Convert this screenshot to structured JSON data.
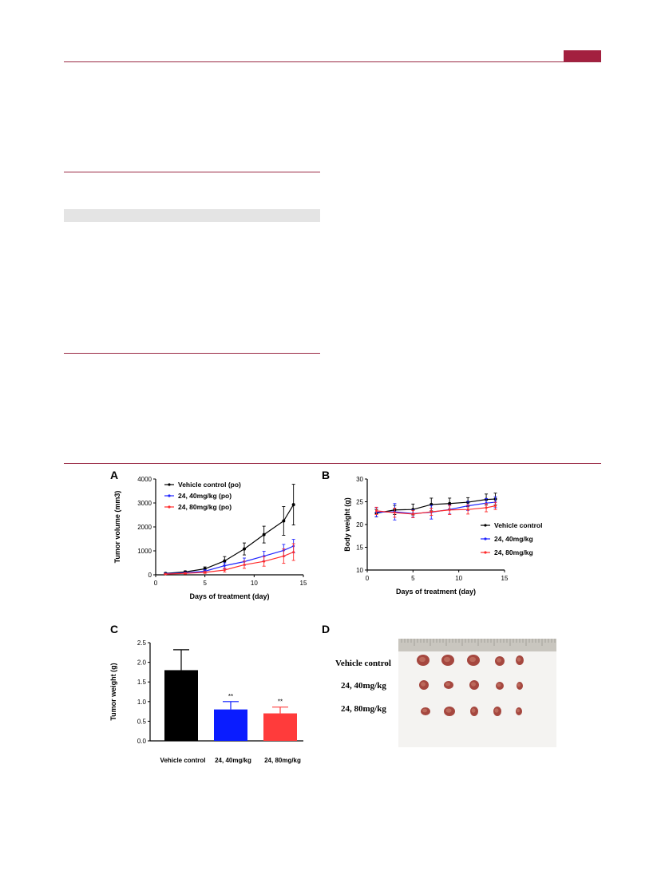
{
  "panels": {
    "a": "A",
    "b": "B",
    "c": "C",
    "d": "D"
  },
  "chart_data": [
    {
      "panel": "A",
      "type": "line",
      "xlabel": "Days of treatment (day)",
      "ylabel": "Tumor volume (mm3)",
      "xlim": [
        0,
        15
      ],
      "ylim": [
        0,
        4000
      ],
      "xticks": [
        "0",
        "5",
        "10",
        "15"
      ],
      "yticks": [
        "0",
        "1000",
        "2000",
        "3000",
        "4000"
      ],
      "legend": "top-left",
      "x": [
        1,
        3,
        5,
        7,
        9,
        11,
        13,
        14
      ],
      "series": [
        {
          "name": "Vehicle control (po)",
          "color": "#000000",
          "values": [
            60,
            120,
            250,
            580,
            1080,
            1680,
            2250,
            2930
          ],
          "errors": [
            30,
            40,
            80,
            180,
            250,
            350,
            600,
            850
          ]
        },
        {
          "name": "24, 40mg/kg (po)",
          "color": "#1f24ff",
          "values": [
            45,
            80,
            150,
            380,
            550,
            780,
            1020,
            1200
          ],
          "errors": [
            20,
            30,
            60,
            120,
            150,
            200,
            250,
            280
          ]
        },
        {
          "name": "24, 80mg/kg (po)",
          "color": "#ff2a2a",
          "values": [
            30,
            60,
            100,
            200,
            420,
            560,
            780,
            950
          ],
          "errors": [
            15,
            25,
            40,
            80,
            150,
            200,
            300,
            350
          ]
        }
      ]
    },
    {
      "panel": "B",
      "type": "line",
      "xlabel": "Days of treatment (day)",
      "ylabel": "Body weight (g)",
      "xlim": [
        0,
        15
      ],
      "ylim": [
        10,
        30
      ],
      "xticks": [
        "0",
        "5",
        "10",
        "15"
      ],
      "yticks": [
        "10",
        "15",
        "20",
        "25",
        "30"
      ],
      "legend": "right",
      "x": [
        1,
        3,
        5,
        7,
        9,
        11,
        13,
        14
      ],
      "series": [
        {
          "name": "Vehicle control",
          "color": "#000000",
          "values": [
            22.5,
            23.2,
            23.3,
            24.4,
            24.6,
            24.9,
            25.5,
            25.6
          ],
          "errors": [
            0.8,
            1.0,
            1.2,
            1.4,
            1.2,
            1.0,
            1.2,
            1.3
          ]
        },
        {
          "name": "24, 40mg/kg",
          "color": "#1f24ff",
          "values": [
            22.7,
            22.8,
            22.4,
            22.7,
            23.3,
            24.1,
            24.7,
            24.9
          ],
          "errors": [
            1.0,
            1.8,
            0.8,
            1.5,
            1.0,
            1.0,
            1.0,
            1.2
          ]
        },
        {
          "name": "24, 80mg/kg",
          "color": "#ff2a2a",
          "values": [
            23.0,
            22.6,
            22.3,
            22.8,
            23.2,
            23.3,
            23.7,
            24.1
          ],
          "errors": [
            0.8,
            1.0,
            0.8,
            0.8,
            1.0,
            1.0,
            0.9,
            0.8
          ]
        }
      ]
    },
    {
      "panel": "C",
      "type": "bar",
      "ylabel": "Tumor weight (g)",
      "ylim": [
        0,
        2.5
      ],
      "yticks": [
        "0.0",
        "0.5",
        "1.0",
        "1.5",
        "2.0",
        "2.5"
      ],
      "categories": [
        "Vehicle control",
        "24, 40mg/kg",
        "24, 80mg/kg"
      ],
      "values": [
        1.8,
        0.8,
        0.7
      ],
      "errors": [
        0.52,
        0.2,
        0.16
      ],
      "colors": [
        "#000000",
        "#0a1cff",
        "#ff3b3b"
      ],
      "annotations": [
        "",
        "**",
        "**"
      ]
    }
  ],
  "photo": {
    "labels": [
      "Vehicle control",
      "24, 40mg/kg",
      "24, 80mg/kg"
    ]
  }
}
